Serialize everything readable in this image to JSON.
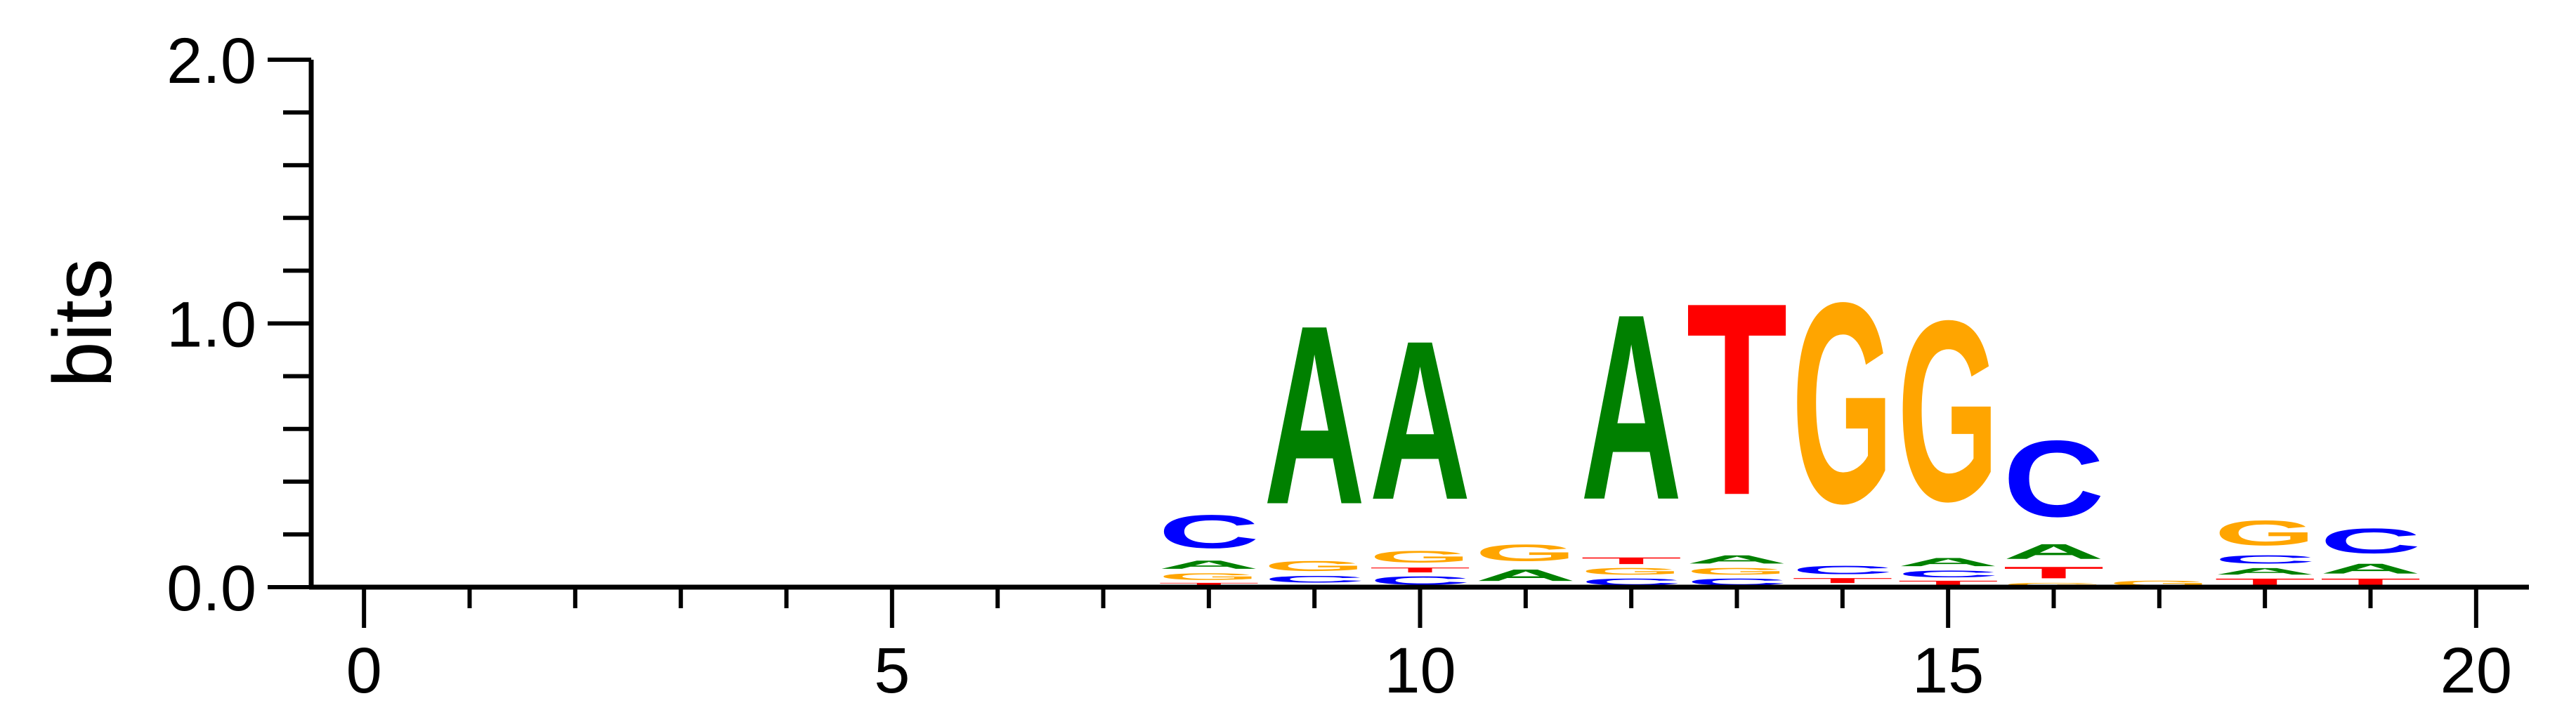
{
  "chart_data": {
    "type": "sequence-logo",
    "ylabel": "bits",
    "ylim": [
      0,
      2.0
    ],
    "y_ticks": [
      "0.0",
      "1.0",
      "2.0"
    ],
    "xlim": [
      -0.5,
      20.5
    ],
    "x_ticks": [
      "0",
      "5",
      "10",
      "15",
      "20"
    ],
    "letter_colors": {
      "A": "#008000",
      "C": "#0000ff",
      "G": "#ffa500",
      "T": "#ff0000"
    },
    "positions": [
      {
        "x": 8,
        "letters": [
          {
            "base": "T",
            "bits": 0.02
          },
          {
            "base": "G",
            "bits": 0.04
          },
          {
            "base": "A",
            "bits": 0.05
          },
          {
            "base": "C",
            "bits": 0.2
          }
        ]
      },
      {
        "x": 9,
        "letters": [
          {
            "base": "T",
            "bits": 0.01
          },
          {
            "base": "C",
            "bits": 0.04
          },
          {
            "base": "G",
            "bits": 0.06
          },
          {
            "base": "A",
            "bits": 1.08
          }
        ]
      },
      {
        "x": 10,
        "letters": [
          {
            "base": "C",
            "bits": 0.05
          },
          {
            "base": "T",
            "bits": 0.03
          },
          {
            "base": "G",
            "bits": 0.07
          },
          {
            "base": "A",
            "bits": 0.96
          }
        ]
      },
      {
        "x": 11,
        "letters": [
          {
            "base": "C",
            "bits": 0.01
          },
          {
            "base": "A",
            "bits": 0.07
          },
          {
            "base": "G",
            "bits": 0.1
          }
        ]
      },
      {
        "x": 12,
        "letters": [
          {
            "base": "C",
            "bits": 0.04
          },
          {
            "base": "G",
            "bits": 0.04
          },
          {
            "base": "T",
            "bits": 0.04
          },
          {
            "base": "A",
            "bits": 1.12
          }
        ]
      },
      {
        "x": 13,
        "letters": [
          {
            "base": "C",
            "bits": 0.04
          },
          {
            "base": "G",
            "bits": 0.04
          },
          {
            "base": "A",
            "bits": 0.05
          },
          {
            "base": "T",
            "bits": 1.16
          }
        ]
      },
      {
        "x": 14,
        "letters": [
          {
            "base": "A",
            "bits": 0.01
          },
          {
            "base": "T",
            "bits": 0.03
          },
          {
            "base": "C",
            "bits": 0.05
          },
          {
            "base": "G",
            "bits": 1.21
          }
        ]
      },
      {
        "x": 15,
        "letters": [
          {
            "base": "T",
            "bits": 0.03
          },
          {
            "base": "C",
            "bits": 0.04
          },
          {
            "base": "A",
            "bits": 0.05
          },
          {
            "base": "G",
            "bits": 1.09
          }
        ]
      },
      {
        "x": 16,
        "letters": [
          {
            "base": "G",
            "bits": 0.02
          },
          {
            "base": "T",
            "bits": 0.07
          },
          {
            "base": "A",
            "bits": 0.09
          },
          {
            "base": "C",
            "bits": 0.46
          }
        ]
      },
      {
        "x": 17,
        "letters": [
          {
            "base": "G",
            "bits": 0.03
          }
        ]
      },
      {
        "x": 18,
        "letters": [
          {
            "base": "T",
            "bits": 0.04
          },
          {
            "base": "A",
            "bits": 0.04
          },
          {
            "base": "C",
            "bits": 0.05
          },
          {
            "base": "G",
            "bits": 0.15
          }
        ]
      },
      {
        "x": 19,
        "letters": [
          {
            "base": "T",
            "bits": 0.04
          },
          {
            "base": "A",
            "bits": 0.06
          },
          {
            "base": "C",
            "bits": 0.15
          }
        ]
      }
    ]
  }
}
